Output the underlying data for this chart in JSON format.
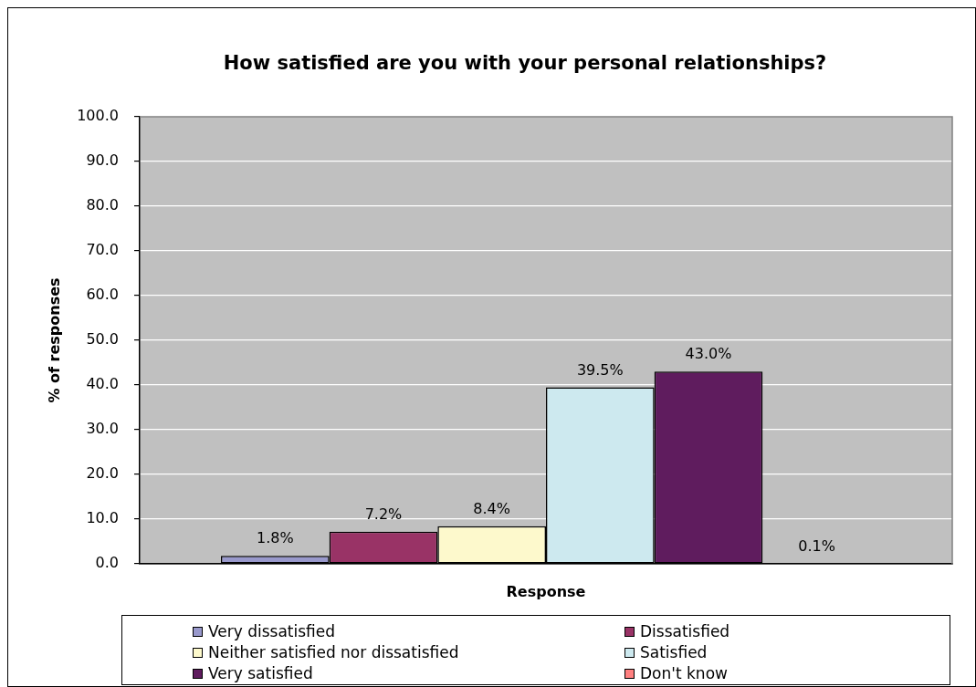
{
  "chart_data": {
    "type": "bar",
    "title": "How satisfied are you with your personal relationships?",
    "xlabel": "Response",
    "ylabel": "% of responses",
    "categories": [
      null
    ],
    "series": [
      {
        "name": "Very dissatisfied",
        "color": "#9999cc",
        "values": [
          1.8
        ],
        "value_labels": [
          "1.8%"
        ]
      },
      {
        "name": "Dissatisfied",
        "color": "#993366",
        "values": [
          7.2
        ],
        "value_labels": [
          "7.2%"
        ]
      },
      {
        "name": "Neither satisfied nor dissatisfied",
        "color": "#fdf9cc",
        "values": [
          8.4
        ],
        "value_labels": [
          "8.4%"
        ]
      },
      {
        "name": "Satisfied",
        "color": "#cde9ef",
        "values": [
          39.5
        ],
        "value_labels": [
          "39.5%"
        ]
      },
      {
        "name": "Very satisfied",
        "color": "#5f1c5e",
        "values": [
          43.0
        ],
        "value_labels": [
          "43.0%"
        ]
      },
      {
        "name": "Don't know",
        "color": "#ff8080",
        "values": [
          0.1
        ],
        "value_labels": [
          "0.1%"
        ]
      }
    ],
    "ylim": [
      0,
      100
    ],
    "yticks": [
      {
        "value": 0,
        "label": "0.0"
      },
      {
        "value": 10,
        "label": "10.0"
      },
      {
        "value": 20,
        "label": "20.0"
      },
      {
        "value": 30,
        "label": "30.0"
      },
      {
        "value": 40,
        "label": "40.0"
      },
      {
        "value": 50,
        "label": "50.0"
      },
      {
        "value": 60,
        "label": "60.0"
      },
      {
        "value": 70,
        "label": "70.0"
      },
      {
        "value": 80,
        "label": "80.0"
      },
      {
        "value": 90,
        "label": "90.0"
      },
      {
        "value": 100,
        "label": "100.0"
      }
    ],
    "grid": "y",
    "legend": "bottom",
    "tick_labels": "y"
  }
}
